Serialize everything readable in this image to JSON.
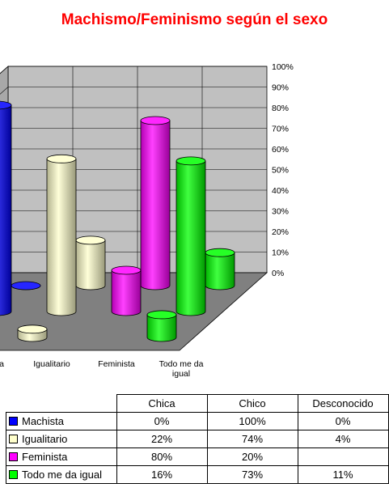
{
  "chart_data": {
    "type": "bar",
    "title": "Machismo/Feminismo según el sexo",
    "categories": [
      "Machista",
      "Igualitario",
      "Feminista",
      "Todo me da igual"
    ],
    "series_axis": [
      "Chica",
      "Chico",
      "Desconocido"
    ],
    "ylim": [
      0,
      100
    ],
    "y_ticks": [
      "0%",
      "10%",
      "20%",
      "30%",
      "40%",
      "50%",
      "60%",
      "70%",
      "80%",
      "90%",
      "100%"
    ],
    "grid": true,
    "series": [
      {
        "name": "Chica",
        "values": [
          0,
          22,
          80,
          16
        ]
      },
      {
        "name": "Chico",
        "values": [
          100,
          74,
          20,
          73
        ]
      },
      {
        "name": "Desconocido",
        "values": [
          0,
          4,
          null,
          11
        ]
      }
    ],
    "colors": {
      "Machista": "#0000ff",
      "Igualitario": "#ffffcc",
      "Feminista": "#ff00ff",
      "Todo me da igual": "#00ff00"
    },
    "table": {
      "headers": [
        "Chica",
        "Chico",
        "Desconocido"
      ],
      "rows": [
        {
          "label": "Machista",
          "cells": [
            "0%",
            "100%",
            "0%"
          ]
        },
        {
          "label": "Igualitario",
          "cells": [
            "22%",
            "74%",
            "4%"
          ]
        },
        {
          "label": "Feminista",
          "cells": [
            "80%",
            "20%",
            ""
          ]
        },
        {
          "label": "Todo me da igual",
          "cells": [
            "16%",
            "73%",
            "11%"
          ]
        }
      ]
    }
  }
}
